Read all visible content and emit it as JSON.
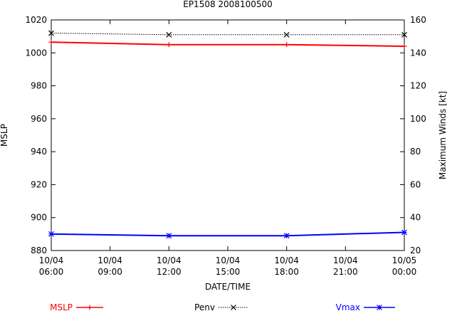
{
  "chart_data": {
    "type": "line",
    "title": "EP1508 2008100500",
    "xlabel": "DATE/TIME",
    "ylabel_left": "MSLP",
    "ylabel_right": "Maximum Winds [kt]",
    "x_categories": [
      [
        "10/04",
        "06:00"
      ],
      [
        "10/04",
        "09:00"
      ],
      [
        "10/04",
        "12:00"
      ],
      [
        "10/04",
        "15:00"
      ],
      [
        "10/04",
        "18:00"
      ],
      [
        "10/04",
        "21:00"
      ],
      [
        "10/05",
        "00:00"
      ]
    ],
    "x_hours": [
      0,
      3,
      6,
      9,
      12,
      15,
      18
    ],
    "ylim_left": [
      880,
      1020
    ],
    "yticks_left": [
      880,
      900,
      920,
      940,
      960,
      980,
      1000,
      1020
    ],
    "ylim_right": [
      20,
      160
    ],
    "yticks_right": [
      20,
      40,
      60,
      80,
      100,
      120,
      140,
      160
    ],
    "grid": false,
    "legend_position": "bottom",
    "series": [
      {
        "name": "MSLP",
        "axis": "left",
        "color": "#ff0000",
        "marker": "plus",
        "line": "solid",
        "x": [
          0,
          6,
          12,
          18
        ],
        "values": [
          1006.5,
          1005.0,
          1005.0,
          1004.0
        ]
      },
      {
        "name": "Penv",
        "axis": "left",
        "color": "#000000",
        "marker": "x",
        "line": "dotted",
        "x": [
          0,
          6,
          12,
          18
        ],
        "values": [
          1012,
          1011,
          1011,
          1011
        ]
      },
      {
        "name": "Vmax",
        "axis": "right",
        "color": "#0000ff",
        "marker": "star",
        "line": "solid",
        "x": [
          0,
          6,
          12,
          18
        ],
        "values": [
          30,
          29,
          29,
          31
        ]
      }
    ]
  }
}
